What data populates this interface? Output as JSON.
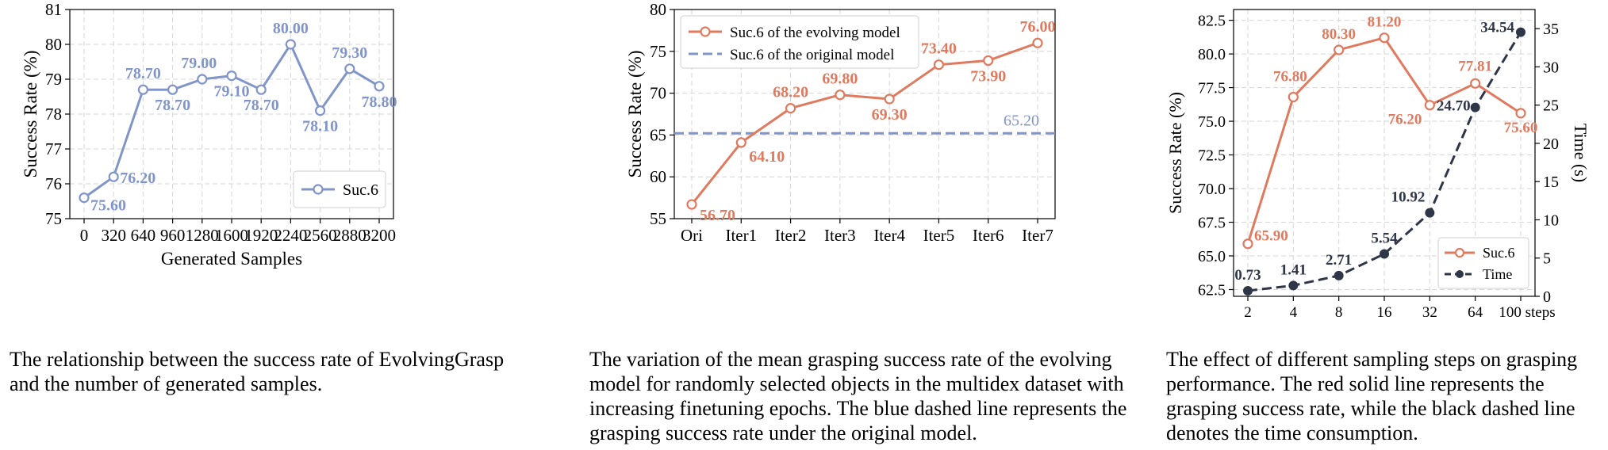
{
  "chart_data": [
    {
      "type": "line",
      "ylabel": "Success Rate (%)",
      "xlabel": "Generated Samples",
      "categories": [
        "0",
        "320",
        "640",
        "960",
        "1280",
        "1600",
        "1920",
        "2240",
        "2560",
        "2880",
        "3200"
      ],
      "yticks": [
        "75",
        "76",
        "77",
        "78",
        "79",
        "80",
        "81"
      ],
      "ylim": [
        75,
        81
      ],
      "grid": true,
      "legend_position": "lower-right",
      "color": "#8195c9",
      "series": [
        {
          "name": "Suc.6",
          "values": [
            75.6,
            76.2,
            78.7,
            78.7,
            79.0,
            79.1,
            78.7,
            80.0,
            78.1,
            79.3,
            78.8
          ],
          "labels": [
            "75.60",
            "76.20",
            "78.70",
            "78.70",
            "79.00",
            "79.10",
            "78.70",
            "80.00",
            "78.10",
            "79.30",
            "78.80"
          ]
        }
      ],
      "caption": "The relationship between the success rate of EvolvingGrasp and the number of generated samples."
    },
    {
      "type": "line",
      "ylabel": "Success Rate (%)",
      "xlabel": "",
      "categories": [
        "Ori",
        "Iter1",
        "Iter2",
        "Iter3",
        "Iter4",
        "Iter5",
        "Iter6",
        "Iter7"
      ],
      "yticks": [
        "55",
        "60",
        "65",
        "70",
        "75",
        "80"
      ],
      "ylim": [
        55,
        80
      ],
      "grid": true,
      "legend_position": "upper-left",
      "series": [
        {
          "name": "Suc.6 of the evolving model",
          "color": "#e07a5f",
          "values": [
            56.7,
            64.1,
            68.2,
            69.8,
            69.3,
            73.4,
            73.9,
            76.0
          ],
          "labels": [
            "56.70",
            "64.10",
            "68.20",
            "69.80",
            "69.30",
            "73.40",
            "73.90",
            "76.00"
          ]
        },
        {
          "name": "Suc.6 of the original model",
          "color": "#8195c9",
          "value": 65.2,
          "label": "65.20"
        }
      ],
      "caption": "The variation of the mean grasping success rate of the evolving model for randomly selected objects in the multidex dataset with increasing finetuning epochs. The blue dashed line represents the grasping success rate under the original model."
    },
    {
      "type": "line",
      "ylabel": "Success Rate (%)",
      "y2label": "Time (s)",
      "xlabel": "",
      "categories": [
        "2",
        "4",
        "8",
        "16",
        "32",
        "64",
        "100 steps"
      ],
      "yticks": [
        "62.5",
        "65.0",
        "67.5",
        "70.0",
        "72.5",
        "75.0",
        "77.5",
        "80.0",
        "82.5"
      ],
      "ylim": [
        62.0,
        83.3
      ],
      "y2ticks": [
        "0",
        "5",
        "10",
        "15",
        "20",
        "25",
        "30",
        "35"
      ],
      "y2lim": [
        0,
        37.5
      ],
      "grid": true,
      "legend_position": "lower-right",
      "series": [
        {
          "name": "Suc.6",
          "color": "#e07a5f",
          "axis": "left",
          "values": [
            65.9,
            76.8,
            80.3,
            81.2,
            76.2,
            77.81,
            75.6
          ],
          "labels": [
            "65.90",
            "76.80",
            "80.30",
            "81.20",
            "76.20",
            "77.81",
            "75.60"
          ]
        },
        {
          "name": "Time",
          "color": "#2e3648",
          "axis": "right",
          "values": [
            0.73,
            1.41,
            2.71,
            5.54,
            10.92,
            24.7,
            34.54
          ],
          "labels": [
            "0.73",
            "1.41",
            "2.71",
            "5.54",
            "10.92",
            "24.70",
            "34.54"
          ]
        }
      ],
      "caption": "The effect of different sampling steps on grasping performance. The red solid line represents the grasping success rate, while the black dashed line denotes the time consumption."
    }
  ]
}
